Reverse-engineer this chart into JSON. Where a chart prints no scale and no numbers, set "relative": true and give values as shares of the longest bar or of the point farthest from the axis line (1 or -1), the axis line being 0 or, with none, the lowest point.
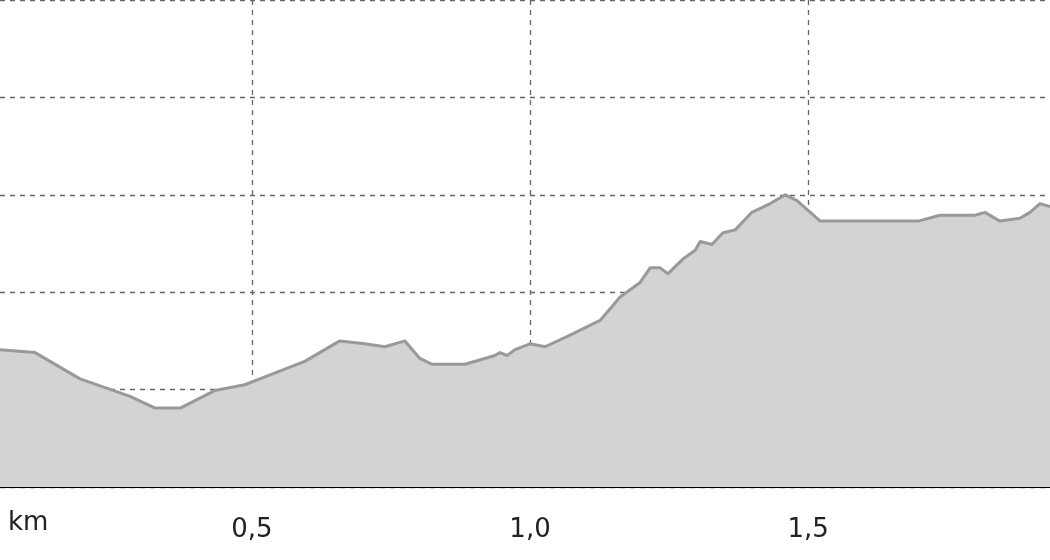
{
  "chart_data": {
    "type": "area",
    "relative": true,
    "xlabel": "km",
    "color": "#999999",
    "grid": true,
    "line_style": "solid",
    "marker": "none",
    "xlim": [
      0.047,
      1.935
    ],
    "xticks": [
      {
        "value": 0.5,
        "label": "0,5"
      },
      {
        "value": 1.0,
        "label": "1,0"
      },
      {
        "value": 1.5,
        "label": "1,5"
      }
    ],
    "x": [
      0.047,
      0.11,
      0.191,
      0.281,
      0.326,
      0.371,
      0.433,
      0.487,
      0.595,
      0.658,
      0.703,
      0.739,
      0.775,
      0.802,
      0.824,
      0.883,
      0.937,
      0.946,
      0.959,
      0.973,
      1.0,
      1.027,
      1.072,
      1.126,
      1.162,
      1.198,
      1.216,
      1.234,
      1.248,
      1.275,
      1.297,
      1.306,
      1.327,
      1.347,
      1.369,
      1.399,
      1.432,
      1.459,
      1.48,
      1.522,
      1.594,
      1.647,
      1.698,
      1.737,
      1.8,
      1.818,
      1.845,
      1.881,
      1.899,
      1.917,
      1.935
    ],
    "values": [
      0.47,
      0.46,
      0.37,
      0.31,
      0.27,
      0.27,
      0.33,
      0.35,
      0.43,
      0.5,
      0.49,
      0.48,
      0.5,
      0.44,
      0.42,
      0.42,
      0.45,
      0.46,
      0.45,
      0.47,
      0.49,
      0.48,
      0.52,
      0.57,
      0.65,
      0.7,
      0.75,
      0.75,
      0.73,
      0.78,
      0.81,
      0.84,
      0.83,
      0.87,
      0.88,
      0.94,
      0.97,
      1,
      0.98,
      0.91,
      0.91,
      0.91,
      0.91,
      0.93,
      0.93,
      0.94,
      0.91,
      0.92,
      0.94,
      0.97,
      0.96
    ]
  }
}
